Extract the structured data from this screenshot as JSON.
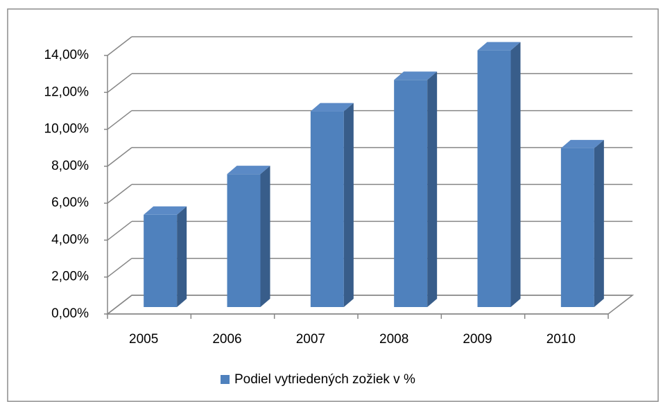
{
  "chart_data": {
    "type": "bar3d",
    "categories": [
      "2005",
      "2006",
      "2007",
      "2008",
      "2009",
      "2010"
    ],
    "series": [
      {
        "name": "Podiel vytriedených zožiek v %",
        "color": "#4f81bd",
        "values": [
          5.0,
          7.2,
          10.6,
          12.3,
          13.9,
          8.6
        ]
      }
    ],
    "ylim": [
      0,
      14
    ],
    "yticks": [
      {
        "value": 0,
        "label": "0,00%"
      },
      {
        "value": 2,
        "label": "2,00%"
      },
      {
        "value": 4,
        "label": "4,00%"
      },
      {
        "value": 6,
        "label": "6,00%"
      },
      {
        "value": 8,
        "label": "8,00%"
      },
      {
        "value": 10,
        "label": "10,00%"
      },
      {
        "value": 12,
        "label": "12,00%"
      },
      {
        "value": 14,
        "label": "14,00%"
      }
    ],
    "grid": true,
    "legend": "bottom"
  }
}
